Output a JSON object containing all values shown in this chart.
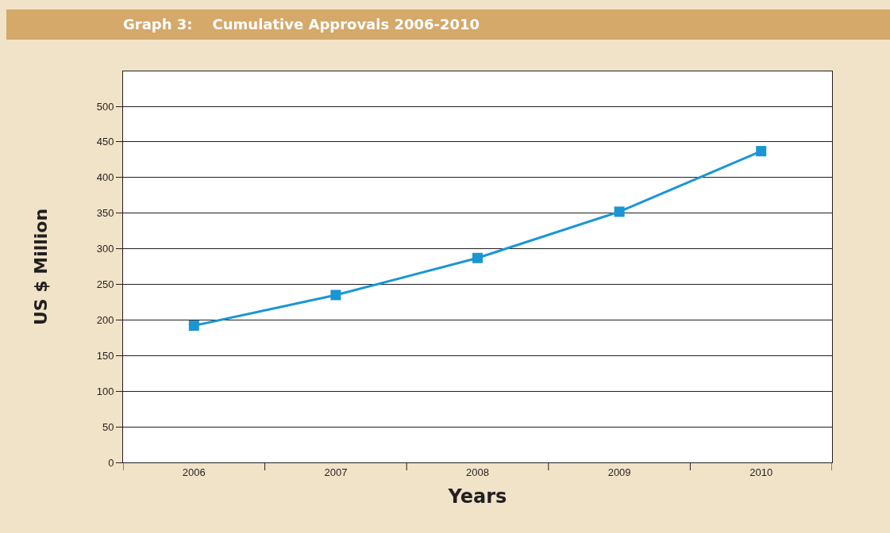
{
  "chart_data": {
    "type": "line",
    "title": "Graph 3:    Cumulative Approvals 2006-2010",
    "xlabel": "Years",
    "ylabel": "US $ Million",
    "categories": [
      "2006",
      "2007",
      "2008",
      "2009",
      "2010"
    ],
    "series": [
      {
        "color": "#1a96d4",
        "values": [
          192,
          235,
          287,
          352,
          437
        ]
      }
    ],
    "ylim": [
      0,
      549
    ],
    "yticks": [
      0,
      50,
      100,
      150,
      200,
      250,
      300,
      350,
      400,
      450,
      500
    ],
    "grid": "y",
    "marker": "square",
    "line_style": "solid"
  }
}
